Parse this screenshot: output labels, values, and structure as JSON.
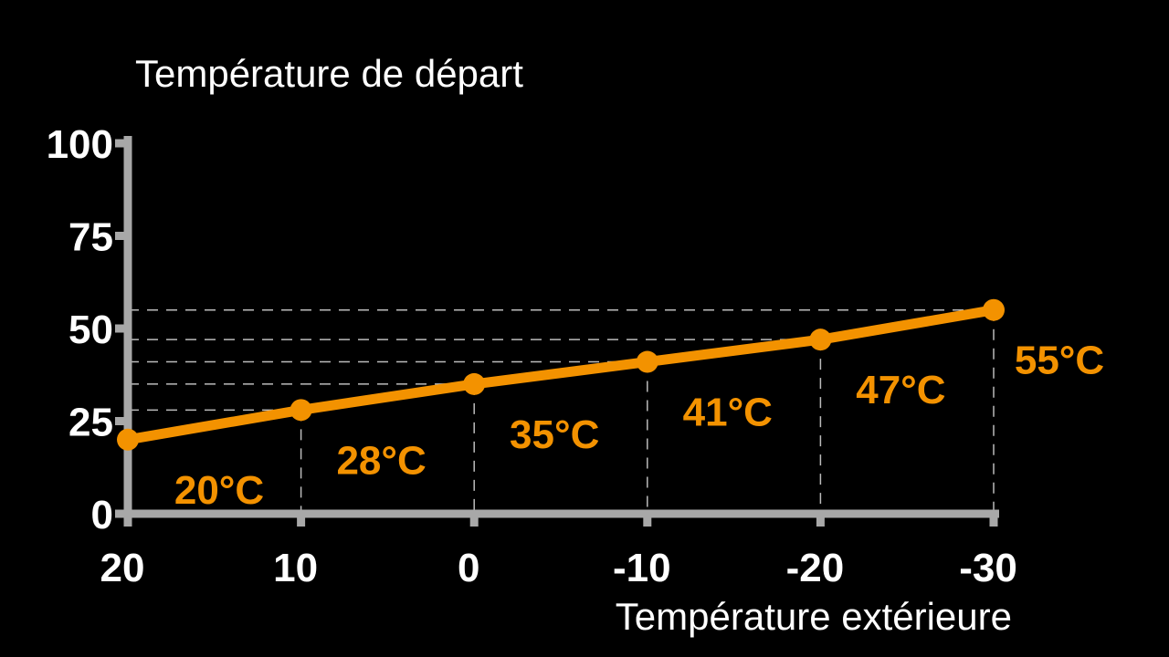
{
  "chart_data": {
    "type": "line",
    "ylabel": "Température de départ",
    "xlabel": "Température extérieure",
    "x": [
      20,
      10,
      0,
      -10,
      -20,
      -30
    ],
    "values": [
      20,
      28,
      35,
      41,
      47,
      55
    ],
    "data_labels": [
      "20°C",
      "28°C",
      "35°C",
      "41°C",
      "47°C",
      "55°C"
    ],
    "x_tick_labels": [
      "20",
      "10",
      "0",
      "-10",
      "-20",
      "-30"
    ],
    "y_tick_labels": [
      "100",
      "75",
      "50",
      "25",
      "0"
    ],
    "y_ticks": [
      100,
      75,
      50,
      25,
      0
    ],
    "xlim": [
      20,
      -30
    ],
    "ylim": [
      0,
      100
    ],
    "grid": false,
    "guide_lines": "dashed",
    "colors": {
      "line": "#f39200",
      "axis": "#a8a8a8",
      "text": "#ffffff",
      "background": "#000000"
    }
  }
}
